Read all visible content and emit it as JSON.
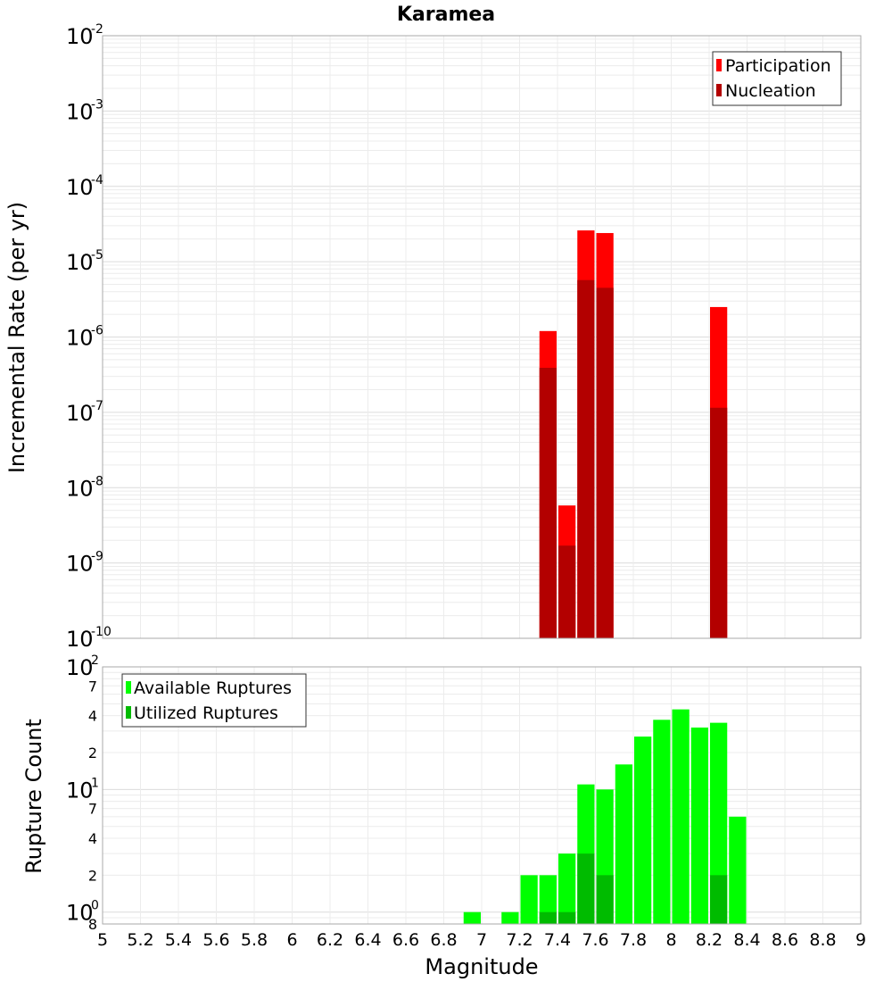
{
  "title": "Karamea",
  "chart_data": [
    {
      "type": "bar",
      "ylabel": "Incremental Rate (per yr)",
      "xlabel": "",
      "yscale": "log",
      "ylim": [
        1e-10,
        0.01
      ],
      "xlim": [
        5,
        9
      ],
      "bin_width": 0.1,
      "grid": true,
      "legend_position": "top-right",
      "y_decade_ticks": [
        {
          "base": "10",
          "exp": "-10",
          "value": 1e-10
        },
        {
          "base": "10",
          "exp": "-9",
          "value": 1e-09
        },
        {
          "base": "10",
          "exp": "-8",
          "value": 1e-08
        },
        {
          "base": "10",
          "exp": "-7",
          "value": 1e-07
        },
        {
          "base": "10",
          "exp": "-6",
          "value": 1e-06
        },
        {
          "base": "10",
          "exp": "-5",
          "value": 1e-05
        },
        {
          "base": "10",
          "exp": "-4",
          "value": 0.0001
        },
        {
          "base": "10",
          "exp": "-3",
          "value": 0.001
        },
        {
          "base": "10",
          "exp": "-2",
          "value": 0.01
        }
      ],
      "series": [
        {
          "name": "Participation",
          "color": "#ff0000",
          "x": [
            7.35,
            7.45,
            7.55,
            7.65,
            8.25
          ],
          "values": [
            1.2e-06,
            5.8e-09,
            2.6e-05,
            2.4e-05,
            2.5e-06
          ]
        },
        {
          "name": "Nucleation",
          "color": "#b30000",
          "x": [
            7.35,
            7.45,
            7.55,
            7.65,
            8.25
          ],
          "values": [
            3.9e-07,
            1.7e-09,
            5.7e-06,
            4.5e-06,
            1.15e-07
          ]
        }
      ]
    },
    {
      "type": "bar",
      "ylabel": "Rupture Count",
      "xlabel": "Magnitude",
      "yscale": "log",
      "ylim": [
        0.8,
        100
      ],
      "xlim": [
        5,
        9
      ],
      "bin_width": 0.1,
      "grid": true,
      "legend_position": "top-left",
      "x_ticks": [
        "5",
        "5.2",
        "5.4",
        "5.6",
        "5.8",
        "6",
        "6.2",
        "6.4",
        "6.6",
        "6.8",
        "7",
        "7.2",
        "7.4",
        "7.6",
        "7.8",
        "8",
        "8.2",
        "8.4",
        "8.6",
        "8.8",
        "9"
      ],
      "y_decade_ticks": [
        {
          "base": "10",
          "exp": "0",
          "value": 1
        },
        {
          "base": "10",
          "exp": "1",
          "value": 10
        },
        {
          "base": "10",
          "exp": "2",
          "value": 100
        }
      ],
      "y_minor_ticks": [
        {
          "label": "8",
          "value": 0.8
        },
        {
          "label": "2",
          "value": 2
        },
        {
          "label": "4",
          "value": 4
        },
        {
          "label": "7",
          "value": 7
        },
        {
          "label": "2",
          "value": 20
        },
        {
          "label": "4",
          "value": 40
        },
        {
          "label": "7",
          "value": 70
        }
      ],
      "series": [
        {
          "name": "Available Ruptures",
          "color": "#00ff00",
          "x": [
            6.95,
            7.15,
            7.25,
            7.35,
            7.45,
            7.55,
            7.65,
            7.75,
            7.85,
            7.95,
            8.05,
            8.15,
            8.25,
            8.35
          ],
          "values": [
            1,
            1,
            2,
            2,
            3,
            11,
            10,
            16,
            27,
            37,
            45,
            32,
            35,
            6
          ]
        },
        {
          "name": "Utilized Ruptures",
          "color": "#00bb00",
          "x": [
            7.35,
            7.45,
            7.55,
            7.65,
            8.25
          ],
          "values": [
            1,
            1,
            3,
            2,
            2
          ]
        }
      ]
    }
  ]
}
